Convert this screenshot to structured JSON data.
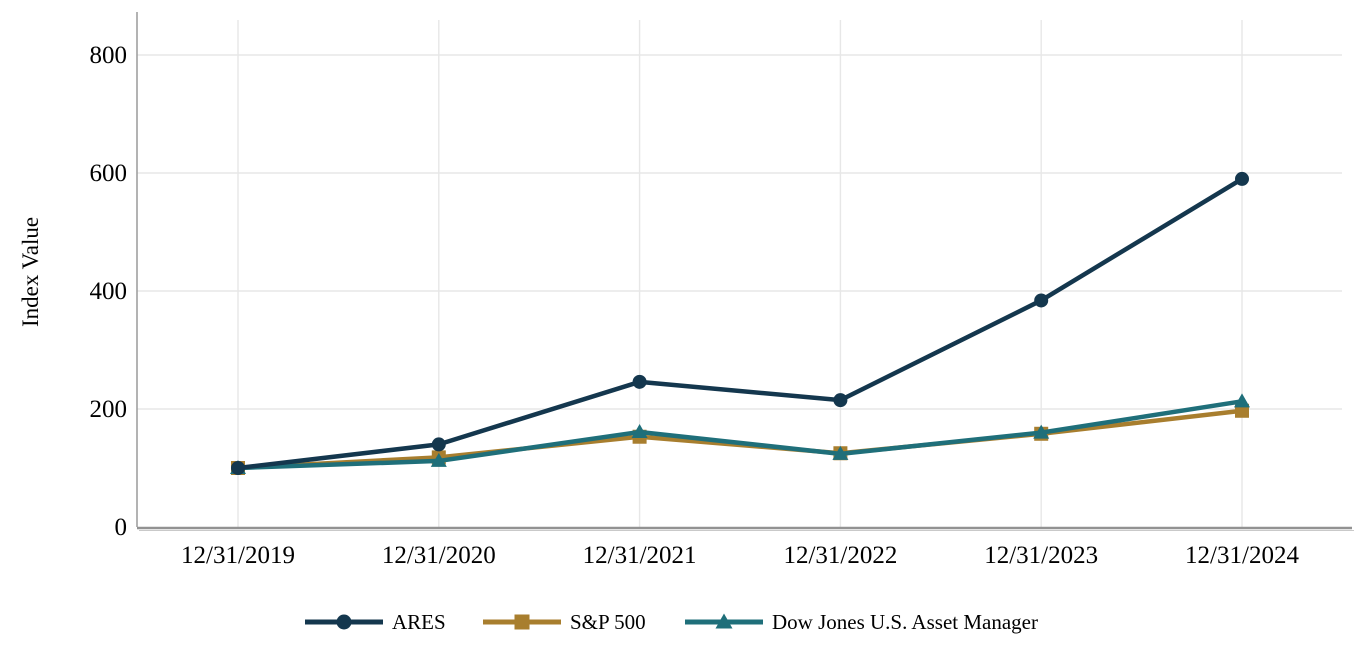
{
  "chart_data": {
    "type": "line",
    "title": "",
    "xlabel": "",
    "ylabel": "Index Value",
    "categories": [
      "12/31/2019",
      "12/31/2020",
      "12/31/2021",
      "12/31/2022",
      "12/31/2023",
      "12/31/2024"
    ],
    "series": [
      {
        "name": "ARES",
        "color": "#14374E",
        "marker": "circle",
        "values": [
          100,
          140,
          246,
          215,
          384,
          590
        ]
      },
      {
        "name": "S&P 500",
        "color": "#A87E2E",
        "marker": "square",
        "values": [
          100,
          118,
          153,
          125,
          158,
          197
        ]
      },
      {
        "name": "Dow Jones U.S. Asset Manager",
        "color": "#1F6F7A",
        "marker": "triangle",
        "values": [
          100,
          112,
          161,
          124,
          160,
          213
        ]
      }
    ],
    "ylim": [
      0,
      860
    ],
    "yticks": [
      0,
      200,
      400,
      600,
      800
    ],
    "grid": true,
    "legend_position": "bottom"
  },
  "colors": {
    "background": "#FFFFFF",
    "gridline": "#E7E7E7",
    "y_axis": "#A0A0A0",
    "x_axis": "#929292",
    "x_axis_shadow": "#C9C9C9",
    "text": "#000000"
  }
}
